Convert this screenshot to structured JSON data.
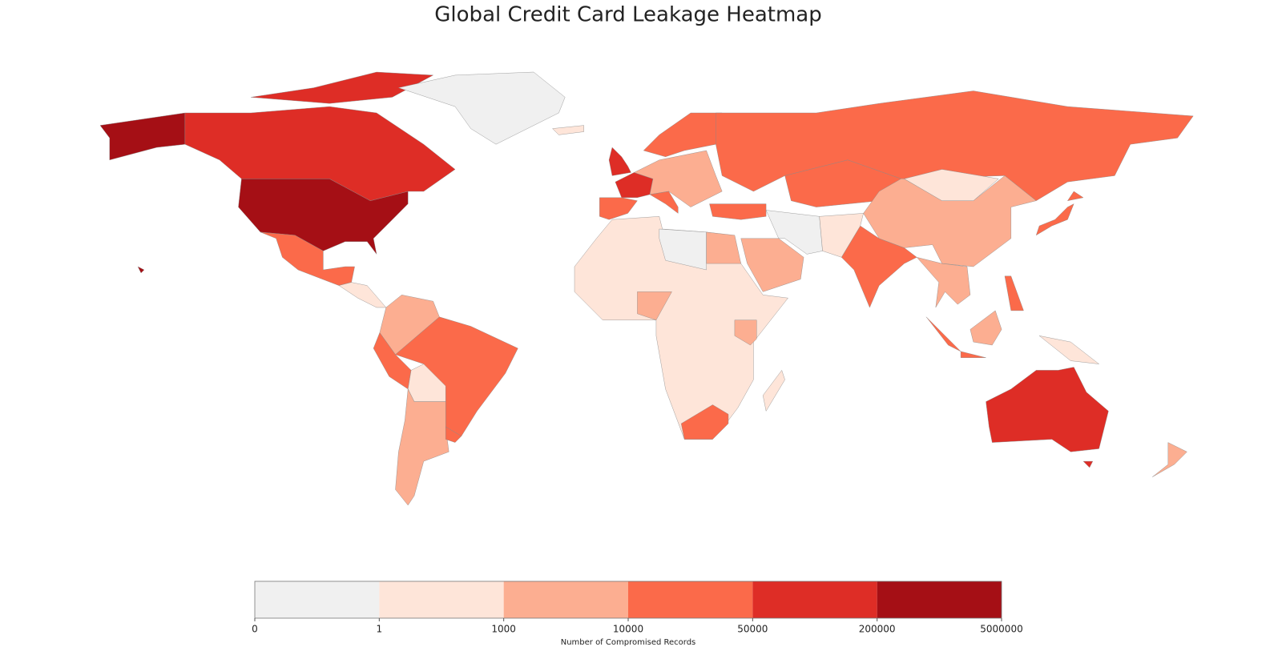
{
  "chart_data": {
    "type": "choropleth",
    "title": "Global Credit Card Leakage Heatmap",
    "values": [
      1000000,
      100000,
      0,
      20000,
      500,
      3000,
      20000,
      20000,
      500,
      3000,
      20000,
      100000,
      100000,
      20000,
      20000,
      3000,
      20000,
      20000,
      20000,
      20000,
      0,
      3000,
      500,
      0,
      3000,
      20000,
      3000,
      3000,
      500,
      20000,
      3000,
      500,
      3000,
      20000,
      20000,
      3000,
      20000,
      500,
      100000,
      3000,
      500,
      500
    ],
    "colorbar": {
      "label": "Number of Compromised Records",
      "bins": [
        0,
        1,
        1000,
        10000,
        50000,
        200000,
        5000000
      ],
      "colors": [
        "#f0f0f0",
        "#fee5d9",
        "#fcae91",
        "#fb6a4a",
        "#de2d26",
        "#a50f15"
      ]
    }
  }
}
